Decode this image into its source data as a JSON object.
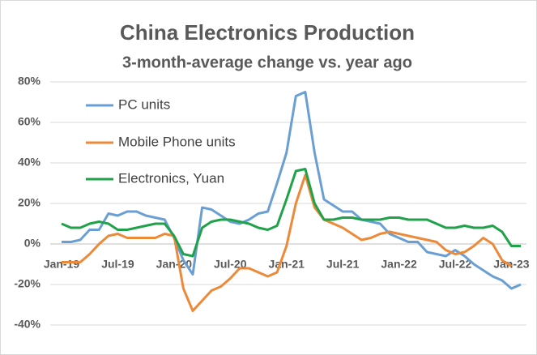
{
  "chart_data": {
    "type": "line",
    "title": "China Electronics Production",
    "subtitle": "3-month-average change vs. year ago",
    "categories": [
      "Jan-19",
      null,
      null,
      null,
      null,
      null,
      "Jul-19",
      null,
      null,
      null,
      null,
      null,
      "Jan-20",
      null,
      null,
      null,
      null,
      null,
      "Jul-20",
      null,
      null,
      null,
      null,
      null,
      "Jan-21",
      null,
      null,
      null,
      null,
      null,
      "Jul-21",
      null,
      null,
      null,
      null,
      null,
      "Jan-22",
      null,
      null,
      null,
      null,
      null,
      "Jul-22",
      null,
      null,
      null,
      null,
      null,
      "Jan-23",
      null
    ],
    "series": [
      {
        "name": "PC units",
        "color": "#6a9fd4",
        "values": [
          1,
          1,
          2,
          7,
          7,
          15,
          14,
          16,
          16,
          14,
          13,
          12,
          3,
          -8,
          -15,
          18,
          17,
          14,
          11,
          10,
          12,
          15,
          16,
          30,
          45,
          73,
          75,
          45,
          22,
          19,
          16,
          16,
          12,
          11,
          10,
          5,
          3,
          1,
          1,
          -4,
          -5,
          -6,
          -3,
          -6,
          -10,
          -13,
          -16,
          -18,
          -22,
          -20
        ]
      },
      {
        "name": "Mobile Phone units",
        "color": "#ed8a3a",
        "values": [
          -9,
          -9,
          -9,
          -5,
          0,
          4,
          5,
          3,
          3,
          3,
          3,
          5,
          4,
          -22,
          -33,
          -28,
          -23,
          -21,
          -17,
          -12,
          -12,
          -14,
          -16,
          -14,
          -1,
          20,
          34,
          18,
          12,
          10,
          8,
          5,
          2,
          3,
          5,
          6,
          5,
          4,
          3,
          2,
          1,
          -3,
          -5,
          -4,
          -1,
          3,
          0,
          -8,
          -11,
          null
        ]
      },
      {
        "name": "Electronics, Yuan",
        "color": "#1fa24a",
        "values": [
          10,
          8,
          8,
          10,
          11,
          10,
          7,
          7,
          8,
          9,
          10,
          10,
          4,
          -5,
          -6,
          8,
          11,
          12,
          12,
          11,
          10,
          8,
          7,
          9,
          22,
          36,
          37,
          20,
          12,
          12,
          13,
          13,
          12,
          12,
          12,
          13,
          13,
          12,
          12,
          12,
          10,
          8,
          8,
          9,
          8,
          8,
          9,
          6,
          -1,
          -1
        ]
      }
    ],
    "ylim": [
      -40,
      80
    ],
    "yticks": [
      {
        "value": -40,
        "label": "-40%"
      },
      {
        "value": -20,
        "label": "-20%"
      },
      {
        "value": 0,
        "label": "0%"
      },
      {
        "value": 20,
        "label": "20%"
      },
      {
        "value": 40,
        "label": "40%"
      },
      {
        "value": 60,
        "label": "60%"
      },
      {
        "value": 80,
        "label": "80%"
      }
    ],
    "grid": true
  }
}
